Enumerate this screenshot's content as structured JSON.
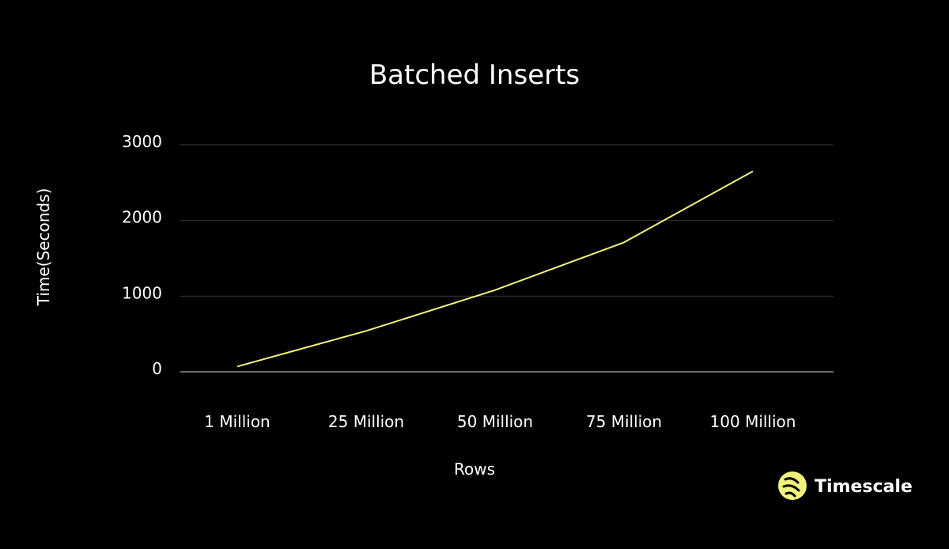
{
  "chart_data": {
    "type": "line",
    "title": "Batched Inserts",
    "xlabel": "Rows",
    "ylabel": "Time(Seconds)",
    "categories": [
      "1 Million",
      "25 Million",
      "50 Million",
      "75 Million",
      "100 Million"
    ],
    "series": [
      {
        "values": [
          70,
          540,
          1080,
          1710,
          2650
        ]
      }
    ],
    "ylim": [
      0,
      3000
    ],
    "yticks": [
      0,
      1000,
      2000,
      3000
    ],
    "grid": true,
    "line_color": "#f2f57a"
  },
  "brand": {
    "name": "Timescale",
    "logo_icon": "timescale-logo-icon",
    "accent": "#f2f57a"
  }
}
